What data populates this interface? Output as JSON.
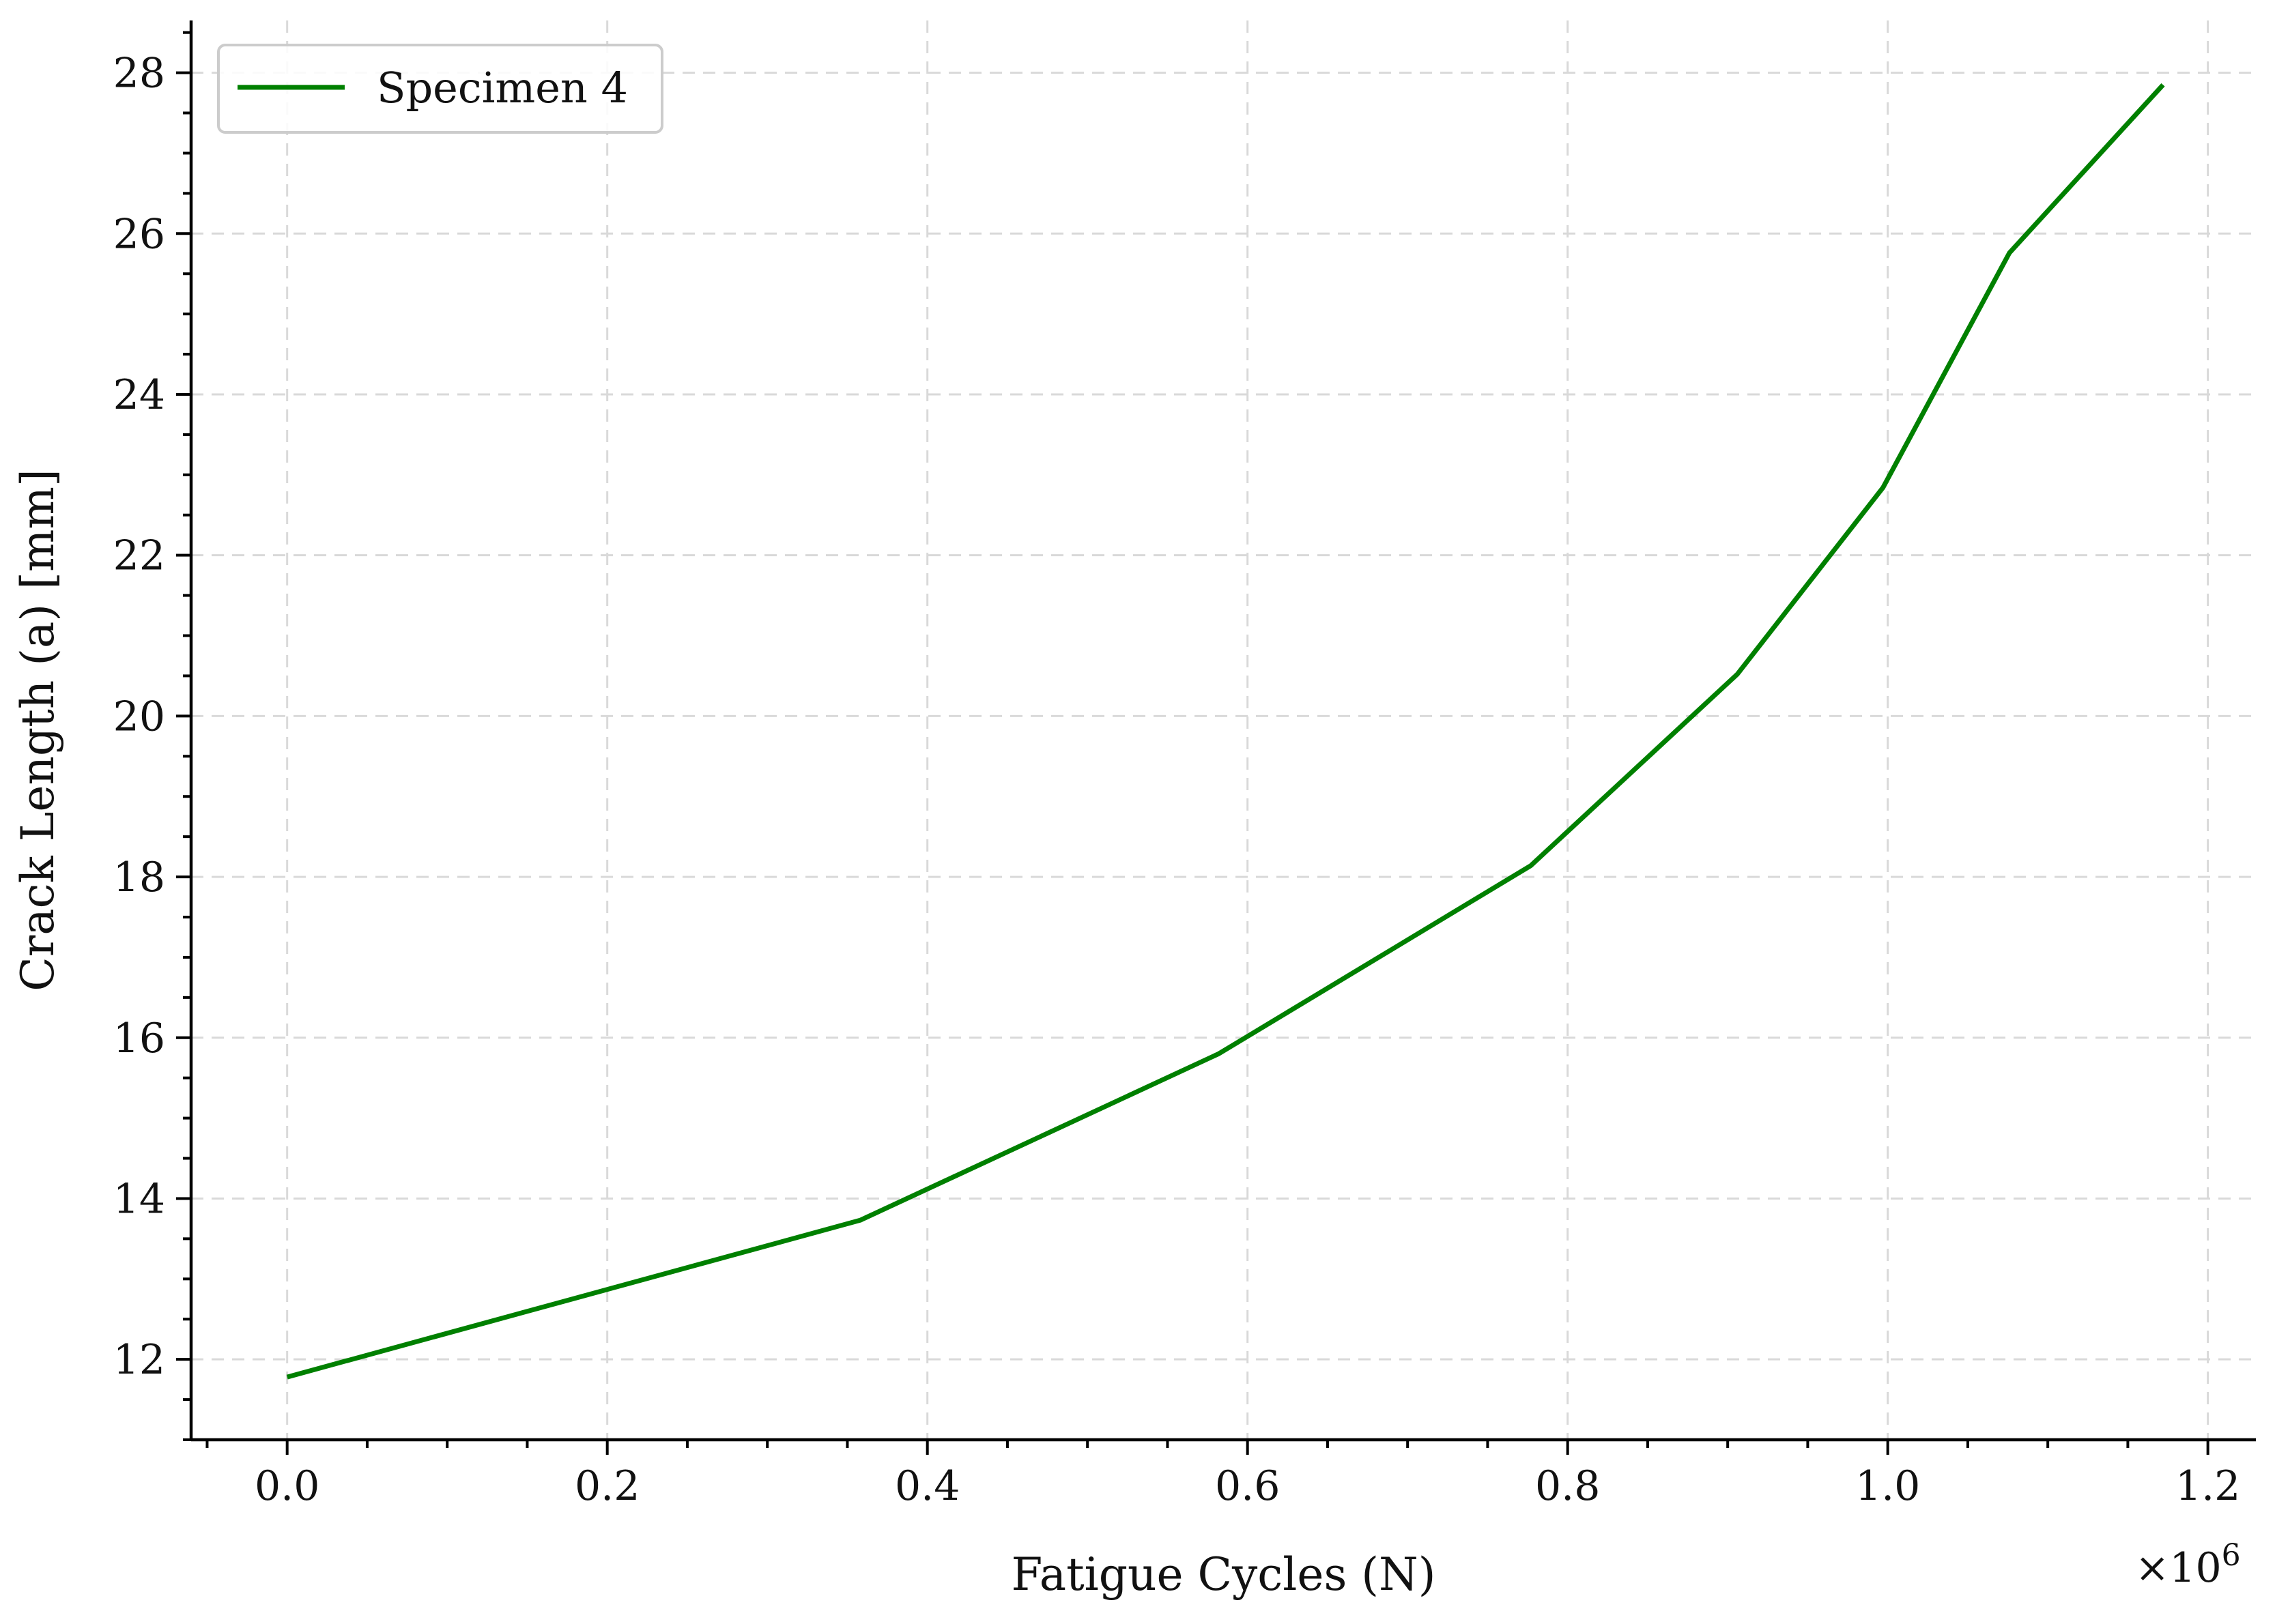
{
  "chart_data": {
    "type": "line",
    "xlabel": "Fatigue Cycles (N)",
    "ylabel": "Crack Length (a) [mm]",
    "x_multiplier_label": "×10",
    "x_multiplier_exponent": "6",
    "xlim": [
      -0.06,
      1.23
    ],
    "ylim": [
      11.0,
      28.65
    ],
    "x_ticks": [
      0.0,
      0.2,
      0.4,
      0.6,
      0.8,
      1.0,
      1.2
    ],
    "x_tick_labels": [
      "0.0",
      "0.2",
      "0.4",
      "0.6",
      "0.8",
      "1.0",
      "1.2"
    ],
    "y_ticks": [
      12,
      14,
      16,
      18,
      20,
      22,
      24,
      26,
      28
    ],
    "y_tick_labels": [
      "12",
      "14",
      "16",
      "18",
      "20",
      "22",
      "24",
      "26",
      "28"
    ],
    "grid": true,
    "legend_position": "top-left",
    "series": [
      {
        "name": "Specimen 4",
        "color": "#008000",
        "x": [
          0.0,
          0.358,
          0.582,
          0.777,
          0.906,
          0.997,
          1.076,
          1.172
        ],
        "y": [
          11.78,
          13.73,
          15.8,
          18.14,
          20.52,
          22.84,
          25.76,
          27.85
        ]
      }
    ]
  }
}
